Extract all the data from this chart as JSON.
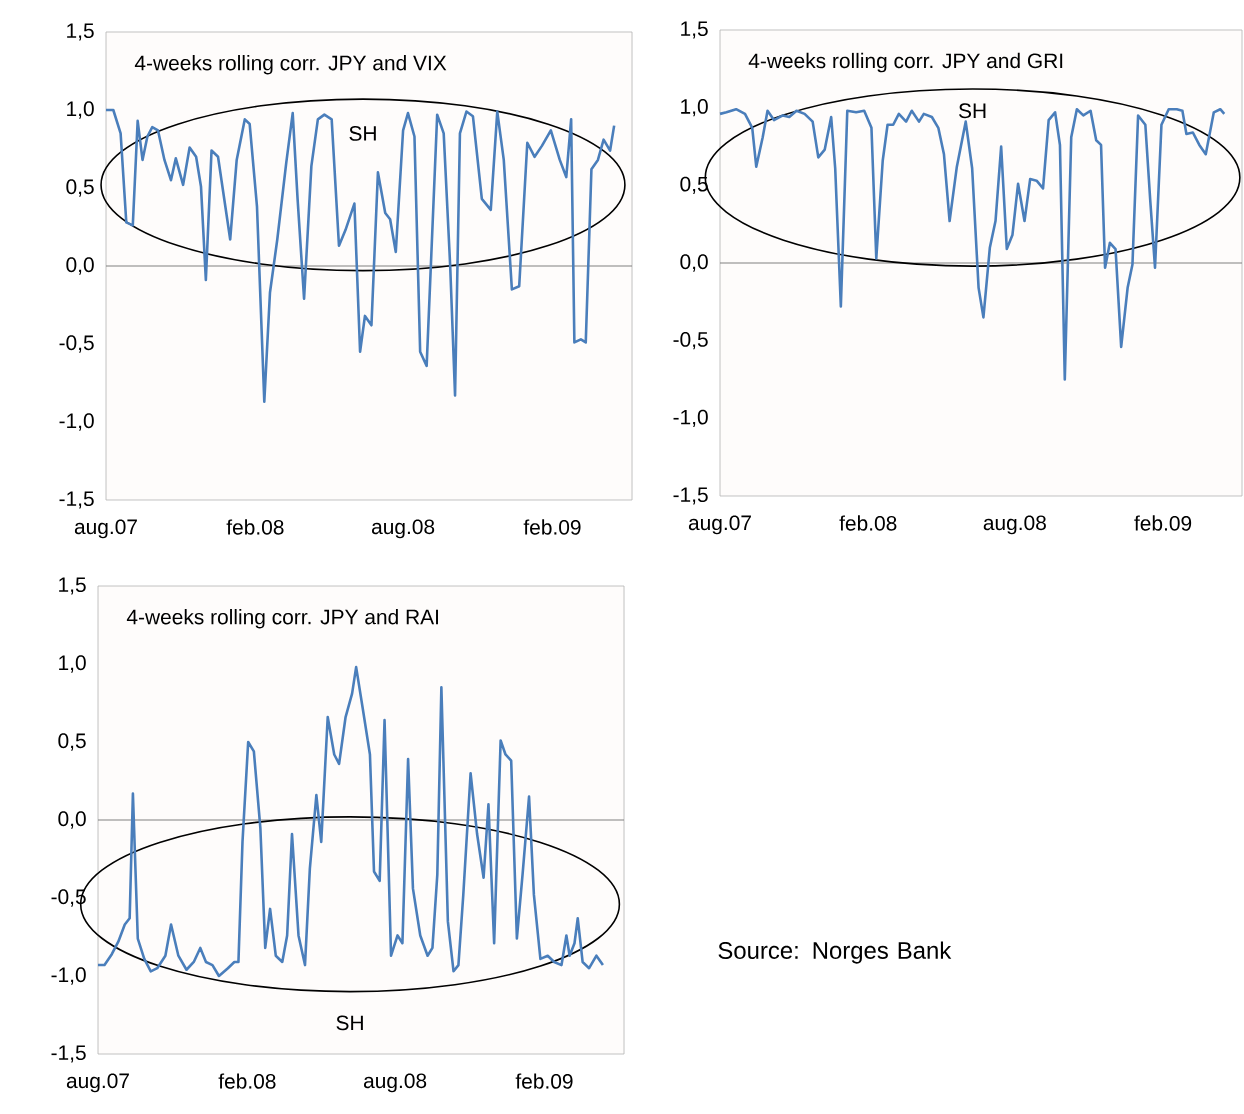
{
  "chart_data": [
    {
      "type": "line",
      "title": "4-weeks rolling corr. JPY and VIX",
      "annotations": [
        "SH"
      ],
      "color": "#4a7ebb",
      "x": [
        "2007-08-01",
        "2007-08-10",
        "2007-08-19",
        "2007-08-26",
        "2007-09-03",
        "2007-09-09",
        "2007-09-15",
        "2007-09-21",
        "2007-09-27",
        "2007-10-04",
        "2007-10-12",
        "2007-10-20",
        "2007-10-26",
        "2007-11-04",
        "2007-11-12",
        "2007-11-20",
        "2007-11-26",
        "2007-12-02",
        "2007-12-09",
        "2007-12-17",
        "2008-01-01",
        "2008-01-09",
        "2008-01-19",
        "2008-01-25",
        "2008-02-03",
        "2008-02-12",
        "2008-02-19",
        "2008-02-28",
        "2008-03-10",
        "2008-03-18",
        "2008-03-24",
        "2008-04-01",
        "2008-04-10",
        "2008-04-18",
        "2008-04-26",
        "2008-05-05",
        "2008-05-14",
        "2008-05-22",
        "2008-06-02",
        "2008-06-09",
        "2008-06-15",
        "2008-06-23",
        "2008-07-01",
        "2008-07-10",
        "2008-07-16",
        "2008-07-23",
        "2008-08-01",
        "2008-08-07",
        "2008-08-15",
        "2008-08-22",
        "2008-08-30",
        "2008-09-12",
        "2008-09-20",
        "2008-09-28",
        "2008-10-04",
        "2008-10-10",
        "2008-10-18",
        "2008-10-26",
        "2008-11-06",
        "2008-11-17",
        "2008-11-25",
        "2008-12-03",
        "2008-12-13",
        "2008-12-22",
        "2009-01-01",
        "2009-01-10",
        "2009-01-19",
        "2009-01-30",
        "2009-02-10",
        "2009-02-18",
        "2009-02-24",
        "2009-02-28",
        "2009-03-08",
        "2009-03-14",
        "2009-03-21",
        "2009-03-29",
        "2009-04-05",
        "2009-04-13",
        "2009-04-18"
      ],
      "values": [
        1.0,
        1.0,
        0.85,
        0.28,
        0.26,
        0.93,
        0.68,
        0.83,
        0.89,
        0.87,
        0.68,
        0.55,
        0.69,
        0.52,
        0.76,
        0.7,
        0.51,
        -0.09,
        0.74,
        0.7,
        0.17,
        0.68,
        0.94,
        0.91,
        0.38,
        -0.87,
        -0.17,
        0.17,
        0.66,
        0.98,
        0.43,
        -0.21,
        0.64,
        0.94,
        0.97,
        0.94,
        0.13,
        0.23,
        0.4,
        -0.55,
        -0.32,
        -0.38,
        0.6,
        0.34,
        0.3,
        0.09,
        0.87,
        0.98,
        0.83,
        -0.55,
        -0.64,
        0.97,
        0.85,
        0.0,
        -0.83,
        0.85,
        0.99,
        0.96,
        0.43,
        0.36,
        0.99,
        0.68,
        -0.15,
        -0.13,
        0.79,
        0.7,
        0.77,
        0.87,
        0.68,
        0.57,
        0.94,
        -0.49,
        -0.47,
        -0.49,
        0.62,
        0.68,
        0.81,
        0.74,
        0.9
      ],
      "xlim": [
        "2007-08-01",
        "2009-05-10"
      ],
      "xticks": [
        {
          "value": "2007-08-01",
          "label": "aug.07"
        },
        {
          "value": "2008-02-01",
          "label": "feb.08"
        },
        {
          "value": "2008-08-01",
          "label": "aug.08"
        },
        {
          "value": "2009-02-01",
          "label": "feb.09"
        }
      ],
      "ylim": [
        -1.5,
        1.5
      ],
      "yticks": [
        {
          "value": -1.5,
          "label": "-1,5"
        },
        {
          "value": -1,
          "label": "-1,0"
        },
        {
          "value": -0.5,
          "label": "-0,5"
        },
        {
          "value": 0,
          "label": "0,0"
        },
        {
          "value": 0.5,
          "label": "0,5"
        },
        {
          "value": 1,
          "label": "1,0"
        },
        {
          "value": 1.5,
          "label": "1,5"
        }
      ],
      "ref_lines": [
        {
          "axis": "y",
          "value": 0,
          "color": "#808080"
        }
      ]
    },
    {
      "type": "line",
      "title": "4-weeks rolling corr. JPY and GRI",
      "annotations": [
        "SH"
      ],
      "color": "#4a7ebb",
      "x": [
        "2007-08-01",
        "2007-08-09",
        "2007-08-21",
        "2007-09-01",
        "2007-09-10",
        "2007-09-15",
        "2007-09-23",
        "2007-09-29",
        "2007-10-07",
        "2007-10-18",
        "2007-10-26",
        "2007-11-04",
        "2007-11-14",
        "2007-11-24",
        "2007-12-01",
        "2007-12-09",
        "2007-12-17",
        "2007-12-22",
        "2007-12-29",
        "2008-01-06",
        "2008-01-17",
        "2008-01-27",
        "2008-02-05",
        "2008-02-11",
        "2008-02-19",
        "2008-02-25",
        "2008-03-03",
        "2008-03-10",
        "2008-03-19",
        "2008-03-26",
        "2008-04-04",
        "2008-04-10",
        "2008-04-20",
        "2008-04-28",
        "2008-05-05",
        "2008-05-12",
        "2008-05-21",
        "2008-06-01",
        "2008-06-09",
        "2008-06-17",
        "2008-06-23",
        "2008-07-01",
        "2008-07-08",
        "2008-07-15",
        "2008-07-22",
        "2008-07-29",
        "2008-08-05",
        "2008-08-13",
        "2008-08-20",
        "2008-08-28",
        "2008-09-05",
        "2008-09-12",
        "2008-09-20",
        "2008-09-26",
        "2008-10-02",
        "2008-10-10",
        "2008-10-17",
        "2008-10-25",
        "2008-11-03",
        "2008-11-10",
        "2008-11-16",
        "2008-11-21",
        "2008-11-27",
        "2008-12-04",
        "2008-12-11",
        "2008-12-19",
        "2008-12-25",
        "2009-01-01",
        "2009-01-10",
        "2009-01-16",
        "2009-01-22",
        "2009-01-30",
        "2009-02-08",
        "2009-02-18",
        "2009-02-25",
        "2009-03-02",
        "2009-03-10",
        "2009-03-18",
        "2009-03-26",
        "2009-04-05",
        "2009-04-13",
        "2009-04-18"
      ],
      "values": [
        0.96,
        0.97,
        0.99,
        0.96,
        0.87,
        0.62,
        0.81,
        0.98,
        0.92,
        0.95,
        0.94,
        0.98,
        0.96,
        0.91,
        0.68,
        0.73,
        0.94,
        0.61,
        -0.28,
        0.98,
        0.97,
        0.98,
        0.87,
        0.03,
        0.66,
        0.89,
        0.89,
        0.96,
        0.91,
        0.98,
        0.91,
        0.96,
        0.94,
        0.87,
        0.7,
        0.27,
        0.62,
        0.91,
        0.61,
        -0.16,
        -0.35,
        0.1,
        0.27,
        0.75,
        0.09,
        0.18,
        0.51,
        0.27,
        0.54,
        0.53,
        0.48,
        0.92,
        0.97,
        0.76,
        -0.75,
        0.81,
        0.99,
        0.95,
        0.98,
        0.79,
        0.76,
        -0.03,
        0.13,
        0.09,
        -0.54,
        -0.16,
        -0.01,
        0.95,
        0.89,
        0.41,
        -0.03,
        0.89,
        0.99,
        0.99,
        0.98,
        0.83,
        0.84,
        0.76,
        0.7,
        0.97,
        0.99,
        0.96
      ],
      "xlim": [
        "2007-08-01",
        "2009-05-10"
      ],
      "xticks": [
        {
          "value": "2007-08-01",
          "label": "aug.07"
        },
        {
          "value": "2008-02-01",
          "label": "feb.08"
        },
        {
          "value": "2008-08-01",
          "label": "aug.08"
        },
        {
          "value": "2009-02-01",
          "label": "feb.09"
        }
      ],
      "ylim": [
        -1.5,
        1.5
      ],
      "yticks": [
        {
          "value": -1.5,
          "label": "-1,5"
        },
        {
          "value": -1,
          "label": "-1,0"
        },
        {
          "value": -0.5,
          "label": "-0,5"
        },
        {
          "value": 0,
          "label": "0,0"
        },
        {
          "value": 0.5,
          "label": "0,5"
        },
        {
          "value": 1,
          "label": "1,0"
        },
        {
          "value": 1.5,
          "label": "1,5"
        }
      ],
      "ref_lines": [
        {
          "axis": "y",
          "value": 0,
          "color": "#808080"
        }
      ]
    },
    {
      "type": "line",
      "title": "4-weeks rolling corr. JPY and RAI",
      "annotations": [
        "SH",
        "Source: Norges Bank"
      ],
      "color": "#4a7ebb",
      "x": [
        "2007-08-01",
        "2007-08-09",
        "2007-08-18",
        "2007-08-26",
        "2007-09-03",
        "2007-09-09",
        "2007-09-13",
        "2007-09-19",
        "2007-09-27",
        "2007-10-05",
        "2007-10-13",
        "2007-10-23",
        "2007-10-30",
        "2007-11-08",
        "2007-11-18",
        "2007-11-27",
        "2007-12-05",
        "2007-12-12",
        "2007-12-20",
        "2007-12-28",
        "2008-01-08",
        "2008-01-16",
        "2008-01-21",
        "2008-01-26",
        "2008-02-02",
        "2008-02-09",
        "2008-02-17",
        "2008-02-23",
        "2008-02-29",
        "2008-03-07",
        "2008-03-15",
        "2008-03-21",
        "2008-03-27",
        "2008-04-04",
        "2008-04-12",
        "2008-04-18",
        "2008-04-26",
        "2008-05-02",
        "2008-05-10",
        "2008-05-18",
        "2008-05-24",
        "2008-06-01",
        "2008-06-09",
        "2008-06-14",
        "2008-06-22",
        "2008-07-01",
        "2008-07-06",
        "2008-07-13",
        "2008-07-19",
        "2008-07-27",
        "2008-08-04",
        "2008-08-10",
        "2008-08-17",
        "2008-08-23",
        "2008-09-01",
        "2008-09-10",
        "2008-09-16",
        "2008-09-22",
        "2008-09-27",
        "2008-10-05",
        "2008-10-12",
        "2008-10-18",
        "2008-10-24",
        "2008-11-02",
        "2008-11-10",
        "2008-11-18",
        "2008-11-24",
        "2008-12-01",
        "2008-12-09",
        "2008-12-15",
        "2008-12-22",
        "2008-12-29",
        "2009-01-05",
        "2009-01-13",
        "2009-01-19",
        "2009-01-27",
        "2009-02-05",
        "2009-02-13",
        "2009-02-22",
        "2009-02-28",
        "2009-03-04",
        "2009-03-10",
        "2009-03-14",
        "2009-03-20",
        "2009-03-28",
        "2009-04-06",
        "2009-04-14"
      ],
      "values": [
        -0.93,
        -0.93,
        -0.86,
        -0.78,
        -0.67,
        -0.63,
        0.17,
        -0.76,
        -0.89,
        -0.97,
        -0.95,
        -0.87,
        -0.67,
        -0.87,
        -0.96,
        -0.91,
        -0.82,
        -0.91,
        -0.93,
        -1.0,
        -0.95,
        -0.91,
        -0.91,
        -0.14,
        0.5,
        0.44,
        -0.05,
        -0.82,
        -0.57,
        -0.87,
        -0.91,
        -0.74,
        -0.09,
        -0.74,
        -0.93,
        -0.31,
        0.16,
        -0.14,
        0.66,
        0.42,
        0.36,
        0.66,
        0.81,
        0.98,
        0.72,
        0.42,
        -0.33,
        -0.39,
        0.64,
        -0.87,
        -0.74,
        -0.79,
        0.39,
        -0.44,
        -0.74,
        -0.87,
        -0.82,
        -0.35,
        0.85,
        -0.65,
        -0.97,
        -0.93,
        -0.48,
        0.3,
        -0.09,
        -0.37,
        0.1,
        -0.79,
        0.51,
        0.42,
        0.38,
        -0.76,
        -0.35,
        0.15,
        -0.48,
        -0.89,
        -0.87,
        -0.91,
        -0.93,
        -0.74,
        -0.87,
        -0.79,
        -0.63,
        -0.91,
        -0.95,
        -0.87,
        -0.93
      ],
      "xlim": [
        "2007-08-01",
        "2009-05-10"
      ],
      "xticks": [
        {
          "value": "2007-08-01",
          "label": "aug.07"
        },
        {
          "value": "2008-02-01",
          "label": "feb.08"
        },
        {
          "value": "2008-08-01",
          "label": "aug.08"
        },
        {
          "value": "2009-02-01",
          "label": "feb.09"
        }
      ],
      "ylim": [
        -1.5,
        1.5
      ],
      "yticks": [
        {
          "value": -1.5,
          "label": "-1,5"
        },
        {
          "value": -1,
          "label": "-1,0"
        },
        {
          "value": -0.5,
          "label": "-0,5"
        },
        {
          "value": 0,
          "label": "0,0"
        },
        {
          "value": 0.5,
          "label": "0,5"
        },
        {
          "value": 1,
          "label": "1,0"
        },
        {
          "value": 1.5,
          "label": "1,5"
        }
      ],
      "ref_lines": [
        {
          "axis": "y",
          "value": 0,
          "color": "#808080"
        }
      ]
    }
  ]
}
